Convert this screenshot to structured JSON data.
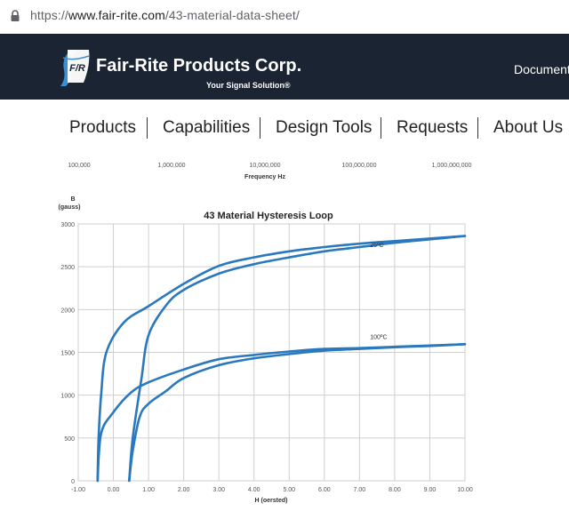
{
  "browser": {
    "url_scheme": "https://",
    "url_host": "www.fair-rite.com",
    "url_path": "/43-material-data-sheet/"
  },
  "header": {
    "brand": "Fair-Rite Products Corp.",
    "tagline": "Your Signal Solution®",
    "logo_text": "F/R",
    "right_link": "Document",
    "bg_color": "#1b2432"
  },
  "nav": {
    "items": [
      "Products",
      "Capabilities",
      "Design Tools",
      "Requests",
      "About Us"
    ]
  },
  "prev_chart": {
    "x_ticks": [
      "100,000",
      "1,000,000",
      "10,000,000",
      "100,000,000",
      "1,000,000,000"
    ],
    "xlabel": "Frequency Hz"
  },
  "chart_data": {
    "type": "line",
    "title": "43 Material Hysteresis Loop",
    "xlabel": "H (oersted)",
    "ylabel": "B",
    "ylabel_unit": "(gauss)",
    "xlim": [
      -1,
      10
    ],
    "ylim": [
      0,
      3000
    ],
    "x_ticks": [
      "-1.00",
      "0.00",
      "1.00",
      "2.00",
      "3.00",
      "4.00",
      "5.00",
      "6.00",
      "7.00",
      "8.00",
      "9.00",
      "10.00"
    ],
    "y_ticks": [
      "0",
      "500",
      "1000",
      "1500",
      "2000",
      "2500",
      "3000"
    ],
    "grid": true,
    "line_color": "#2a78bd",
    "series": [
      {
        "name": "25ºC",
        "upper": [
          [
            -0.45,
            0
          ],
          [
            -0.42,
            500
          ],
          [
            -0.35,
            1000
          ],
          [
            -0.2,
            1500
          ],
          [
            0.3,
            1850
          ],
          [
            1.0,
            2040
          ],
          [
            2.0,
            2300
          ],
          [
            3.0,
            2510
          ],
          [
            4.0,
            2610
          ],
          [
            5.0,
            2680
          ],
          [
            6.0,
            2730
          ],
          [
            7.0,
            2770
          ],
          [
            8.0,
            2800
          ],
          [
            9.0,
            2830
          ],
          [
            10.0,
            2860
          ]
        ],
        "lower": [
          [
            0.45,
            0
          ],
          [
            0.55,
            500
          ],
          [
            0.8,
            1200
          ],
          [
            1.0,
            1700
          ],
          [
            1.5,
            2050
          ],
          [
            2.0,
            2230
          ],
          [
            3.0,
            2420
          ],
          [
            4.0,
            2530
          ],
          [
            5.0,
            2610
          ],
          [
            6.0,
            2680
          ],
          [
            7.0,
            2730
          ],
          [
            8.0,
            2780
          ],
          [
            9.0,
            2820
          ],
          [
            10.0,
            2860
          ]
        ]
      },
      {
        "name": "100ºC",
        "upper": [
          [
            -0.45,
            0
          ],
          [
            -0.35,
            550
          ],
          [
            0.0,
            800
          ],
          [
            0.5,
            1030
          ],
          [
            1.0,
            1150
          ],
          [
            2.0,
            1300
          ],
          [
            3.0,
            1420
          ],
          [
            4.0,
            1470
          ],
          [
            5.0,
            1510
          ],
          [
            6.0,
            1540
          ],
          [
            7.0,
            1550
          ],
          [
            8.0,
            1565
          ],
          [
            9.0,
            1580
          ],
          [
            10.0,
            1595
          ]
        ],
        "lower": [
          [
            0.45,
            0
          ],
          [
            0.55,
            350
          ],
          [
            0.75,
            750
          ],
          [
            1.0,
            900
          ],
          [
            1.5,
            1050
          ],
          [
            2.0,
            1200
          ],
          [
            3.0,
            1350
          ],
          [
            4.0,
            1430
          ],
          [
            5.0,
            1480
          ],
          [
            6.0,
            1520
          ],
          [
            7.0,
            1540
          ],
          [
            8.0,
            1560
          ],
          [
            9.0,
            1575
          ],
          [
            10.0,
            1595
          ]
        ]
      }
    ]
  }
}
